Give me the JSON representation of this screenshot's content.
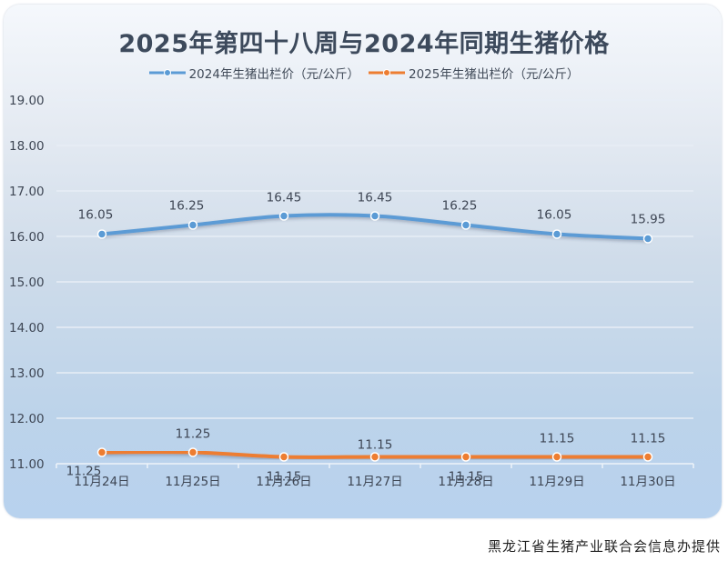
{
  "chart_data": {
    "type": "line",
    "title": "2025年第四十八周与2024年同期生猪价格",
    "xlabel": "",
    "ylabel": "",
    "categories": [
      "11月24日",
      "11月25日",
      "11月26日",
      "11月27日",
      "11月28日",
      "11月29日",
      "11月30日"
    ],
    "series": [
      {
        "name": "2024年生猪出栏价（元/公斤）",
        "color": "#5b9bd5",
        "values": [
          16.05,
          16.25,
          16.45,
          16.45,
          16.25,
          16.05,
          15.95
        ]
      },
      {
        "name": "2025年生猪出栏价（元/公斤）",
        "color": "#ed7d31",
        "values": [
          11.25,
          11.25,
          11.15,
          11.15,
          11.15,
          11.15,
          11.15
        ]
      }
    ],
    "ylim": [
      11.0,
      19.0
    ],
    "yticks": [
      "11.00",
      "12.00",
      "13.00",
      "14.00",
      "15.00",
      "16.00",
      "17.00",
      "18.00",
      "19.00"
    ],
    "grid": true,
    "legend_position": "top",
    "smooth": true
  },
  "footer": {
    "source": "黑龙江省生猪产业联合会信息办提供"
  }
}
